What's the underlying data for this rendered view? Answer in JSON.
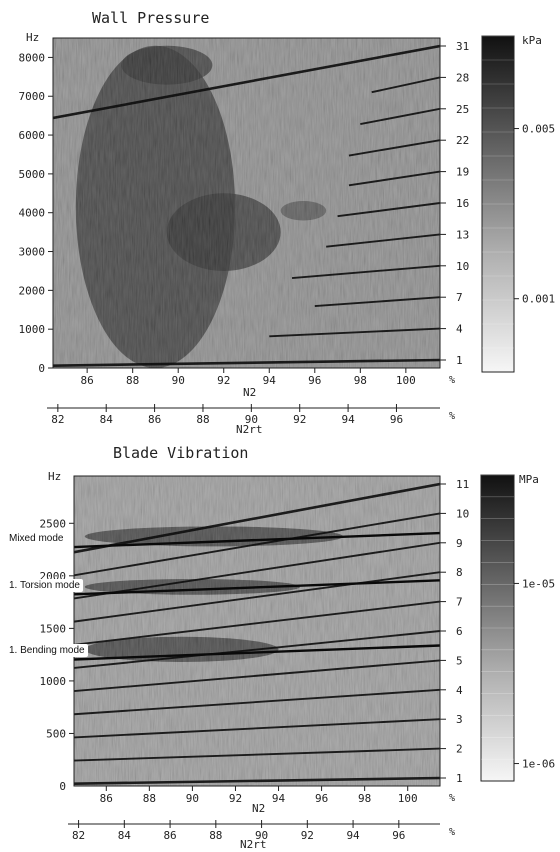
{
  "colors": {
    "plot_dark": "#181818",
    "plot_light": "#f4f4f4",
    "ink": "#222222"
  },
  "chart_data": [
    {
      "type": "heatmap",
      "title": "Wall Pressure",
      "xlabel": "N2",
      "secondary_xlabel": "N2rt",
      "ylabel_unit": "Hz",
      "x_range": [
        84.5,
        101.5
      ],
      "x_ticks": [
        "86",
        "88",
        "90",
        "92",
        "94",
        "96",
        "98",
        "100"
      ],
      "x_unit": "%",
      "secondary_x_range": [
        81.8,
        97.8
      ],
      "secondary_x_ticks": [
        "82",
        "84",
        "86",
        "88",
        "90",
        "92",
        "94",
        "96"
      ],
      "secondary_x_unit": "%",
      "y_range": [
        0,
        8500
      ],
      "y_ticks": [
        "0",
        "1000",
        "2000",
        "3000",
        "4000",
        "5000",
        "6000",
        "7000",
        "8000"
      ],
      "order_ticks": [
        "1",
        "4",
        "7",
        "10",
        "13",
        "16",
        "19",
        "22",
        "25",
        "28",
        "31"
      ],
      "colorbar": {
        "unit": "kPa",
        "scale": "log",
        "range": [
          0.0005,
          0.012
        ],
        "tick_labels": [
          "0.005",
          "0.001"
        ],
        "tick_values": [
          0.005,
          0.001
        ]
      },
      "engine_orders": [
        {
          "order": 1,
          "shown_from": 84.5
        },
        {
          "order": 4,
          "shown_from": 94
        },
        {
          "order": 7,
          "shown_from": 96
        },
        {
          "order": 10,
          "shown_from": 95
        },
        {
          "order": 13,
          "shown_from": 96.5
        },
        {
          "order": 16,
          "shown_from": 97
        },
        {
          "order": 19,
          "shown_from": 97.5
        },
        {
          "order": 22,
          "shown_from": 97.5
        },
        {
          "order": 25,
          "shown_from": 98
        },
        {
          "order": 28,
          "shown_from": 98.5
        },
        {
          "order": 31,
          "shown_from": 84.5
        }
      ],
      "high_intensity_regions": [
        {
          "x": [
            85.5,
            92.5
          ],
          "y": [
            0,
            8300
          ],
          "level": "high"
        },
        {
          "x": [
            89.5,
            94.5
          ],
          "y": [
            2500,
            4500
          ],
          "level": "high"
        },
        {
          "x": [
            94.5,
            96.5
          ],
          "y": [
            3800,
            4300
          ],
          "level": "medium"
        },
        {
          "x": [
            87.5,
            91.5
          ],
          "y": [
            7300,
            8300
          ],
          "level": "high"
        }
      ]
    },
    {
      "type": "heatmap",
      "title": "Blade Vibration",
      "xlabel": "N2",
      "secondary_xlabel": "N2rt",
      "ylabel_unit": "Hz",
      "x_range": [
        84.5,
        101.5
      ],
      "x_ticks": [
        "86",
        "88",
        "90",
        "92",
        "94",
        "96",
        "98",
        "100"
      ],
      "x_unit": "%",
      "secondary_x_range": [
        81.8,
        97.8
      ],
      "secondary_x_ticks": [
        "82",
        "84",
        "86",
        "88",
        "90",
        "92",
        "94",
        "96"
      ],
      "secondary_x_unit": "%",
      "y_range": [
        0,
        2950
      ],
      "y_ticks": [
        "500",
        "1000",
        "1500",
        "2000",
        "2500"
      ],
      "y_tick_values": [
        500,
        1000,
        1500,
        2000,
        2500
      ],
      "y_zero_label": "0",
      "order_ticks": [
        "1",
        "2",
        "3",
        "4",
        "5",
        "6",
        "7",
        "8",
        "9",
        "10",
        "11"
      ],
      "colorbar": {
        "unit": "MPa",
        "scale": "log",
        "range": [
          8e-07,
          4e-05
        ],
        "tick_labels": [
          "1e-05",
          "1e-06"
        ],
        "tick_values": [
          1e-05,
          1e-06
        ]
      },
      "modes": [
        {
          "label": "Mixed mode",
          "frequency": 2350
        },
        {
          "label": "1. Torsion mode",
          "frequency": 1900
        },
        {
          "label": "1. Bending mode",
          "frequency": 1280
        }
      ],
      "high_intensity_regions": [
        {
          "x": [
            85,
            97
          ],
          "y": [
            2280,
            2470
          ],
          "level": "high"
        },
        {
          "x": [
            85,
            95
          ],
          "y": [
            1820,
            1970
          ],
          "level": "high"
        },
        {
          "x": [
            85,
            94
          ],
          "y": [
            1180,
            1420
          ],
          "level": "high"
        }
      ]
    }
  ]
}
